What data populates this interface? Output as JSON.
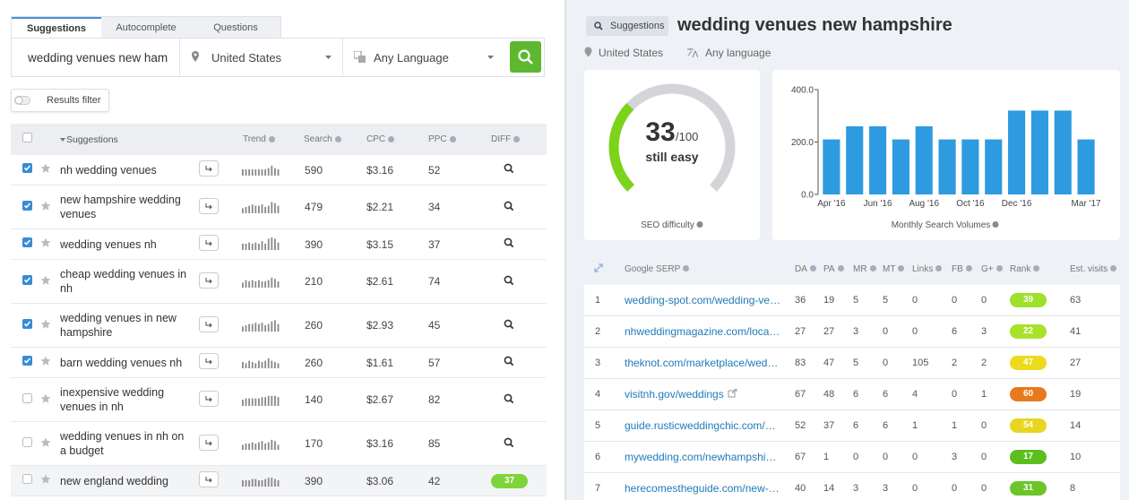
{
  "tabs": [
    "Suggestions",
    "Autocomplete",
    "Questions"
  ],
  "search": {
    "query": "wedding venues new ham",
    "location": "United States",
    "language": "Any Language"
  },
  "filter_button": "Results filter",
  "suggestions_table": {
    "headers": [
      "Suggestions",
      "Trend",
      "Search",
      "CPC",
      "PPC",
      "DIFF"
    ],
    "rows": [
      {
        "keyword": "nh wedding venues",
        "checked": true,
        "trend": [
          5,
          5,
          5,
          5,
          5,
          5,
          5,
          5,
          6,
          8,
          6,
          5
        ],
        "search": 590,
        "cpc": "$3.16",
        "ppc": 52
      },
      {
        "keyword": "new hampshire wedding venues",
        "checked": true,
        "trend": [
          4,
          5,
          6,
          7,
          6,
          6,
          7,
          5,
          6,
          9,
          8,
          6
        ],
        "search": 479,
        "cpc": "$2.21",
        "ppc": 34
      },
      {
        "keyword": "wedding venues nh",
        "checked": true,
        "trend": [
          5,
          5,
          6,
          5,
          6,
          5,
          7,
          5,
          9,
          10,
          9,
          6
        ],
        "search": 390,
        "cpc": "$3.15",
        "ppc": 37
      },
      {
        "keyword": "cheap wedding venues in nh",
        "checked": true,
        "trend": [
          4,
          6,
          5,
          6,
          5,
          6,
          5,
          5,
          6,
          8,
          7,
          5
        ],
        "search": 210,
        "cpc": "$2.61",
        "ppc": 74
      },
      {
        "keyword": "wedding venues in new hampshire",
        "checked": true,
        "trend": [
          4,
          5,
          6,
          6,
          7,
          6,
          7,
          5,
          6,
          8,
          9,
          6
        ],
        "search": 260,
        "cpc": "$2.93",
        "ppc": 45
      },
      {
        "keyword": "barn wedding venues nh",
        "checked": true,
        "trend": [
          5,
          4,
          6,
          5,
          4,
          6,
          5,
          6,
          8,
          6,
          5,
          4
        ],
        "search": 260,
        "cpc": "$1.61",
        "ppc": 57
      },
      {
        "keyword": "inexpensive wedding venues in nh",
        "checked": false,
        "trend": [
          5,
          6,
          6,
          6,
          6,
          6,
          7,
          7,
          8,
          8,
          8,
          7
        ],
        "search": 140,
        "cpc": "$2.67",
        "ppc": 82
      },
      {
        "keyword": "wedding venues in nh on a budget",
        "checked": false,
        "trend": [
          4,
          5,
          5,
          6,
          5,
          6,
          7,
          5,
          6,
          8,
          7,
          4
        ],
        "search": 170,
        "cpc": "$3.16",
        "ppc": 85
      },
      {
        "keyword": "new england wedding",
        "checked": false,
        "trend": [
          5,
          5,
          5,
          6,
          6,
          5,
          5,
          6,
          7,
          7,
          6,
          5
        ],
        "search": 390,
        "cpc": "$3.06",
        "ppc": 42,
        "diff": 37,
        "diff_color": "#7fd43a"
      }
    ]
  },
  "header": {
    "badge": "Suggestions",
    "title": "wedding venues new hampshire",
    "location": "United States",
    "language": "Any language"
  },
  "gauge": {
    "value": 33,
    "max": 100,
    "max_label": "/100",
    "verdict": "still easy",
    "caption": "SEO difficulty"
  },
  "chart_data": {
    "type": "bar",
    "xlabel": "Monthly Search Volumes",
    "categories": [
      "Apr '16",
      null,
      "Jun '16",
      null,
      "Aug '16",
      null,
      "Oct '16",
      null,
      "Dec '16",
      null,
      null,
      "Mar '17"
    ],
    "values": [
      210,
      260,
      260,
      210,
      260,
      210,
      210,
      210,
      320,
      320,
      320,
      210
    ],
    "color": "#2e9be0",
    "ylim": [
      0,
      400
    ],
    "yticks": [
      {
        "value": 0,
        "label": "0.0"
      },
      {
        "value": 200,
        "label": "200.0"
      },
      {
        "value": 400,
        "label": "400.0"
      }
    ]
  },
  "serp_table": {
    "headers": [
      "Google SERP",
      "DA",
      "PA",
      "MR",
      "MT",
      "Links",
      "FB",
      "G+",
      "Rank",
      "Est. visits"
    ],
    "rows": [
      {
        "position": 1,
        "url": "wedding-spot.com/wedding-ve…",
        "cells": [
          36,
          19,
          5,
          5,
          0,
          0,
          0
        ],
        "rank": 39,
        "rank_color": "#9ee02c",
        "visits": 63
      },
      {
        "position": 2,
        "url": "nhweddingmagazine.com/loca…",
        "cells": [
          27,
          27,
          3,
          0,
          0,
          6,
          3
        ],
        "rank": 22,
        "rank_color": "#a9e22a",
        "visits": 41
      },
      {
        "position": 3,
        "url": "theknot.com/marketplace/wed…",
        "cells": [
          83,
          47,
          5,
          0,
          105,
          2,
          2
        ],
        "rank": 47,
        "rank_color": "#ecdb1c",
        "visits": 27
      },
      {
        "position": 4,
        "url": "visitnh.gov/weddings",
        "cells": [
          67,
          48,
          6,
          6,
          4,
          0,
          1
        ],
        "rank": 60,
        "rank_color": "#e9791d",
        "visits": 19
      },
      {
        "position": 5,
        "url": "guide.rusticweddingchic.com/…",
        "cells": [
          52,
          37,
          6,
          6,
          1,
          1,
          0
        ],
        "rank": 54,
        "rank_color": "#e8d620",
        "visits": 14
      },
      {
        "position": 6,
        "url": "mywedding.com/newhampshi…",
        "cells": [
          67,
          1,
          0,
          0,
          0,
          3,
          0
        ],
        "rank": 17,
        "rank_color": "#5cbf1f",
        "visits": 10
      },
      {
        "position": 7,
        "url": "herecomestheguide.com/new-…",
        "cells": [
          40,
          14,
          3,
          3,
          0,
          0,
          0
        ],
        "rank": 31,
        "rank_color": "#6cc52a",
        "visits": 8
      }
    ]
  }
}
